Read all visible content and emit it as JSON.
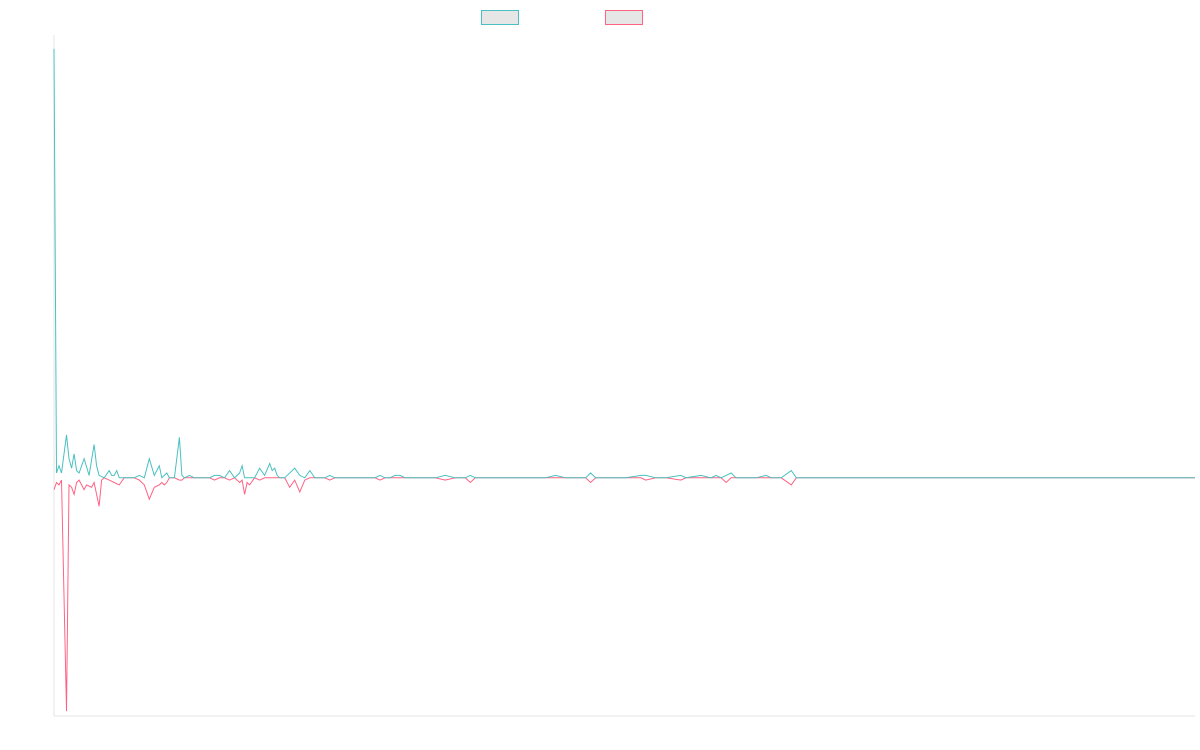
{
  "colors": {
    "series_a": "#4bc0c0",
    "series_b": "#ff6384",
    "axis": "#e5e5e5",
    "legend_fill": "#e6e6e6"
  },
  "chart_data": {
    "type": "line",
    "title": "",
    "xlabel": "",
    "ylabel": "",
    "grid": false,
    "legend_position": "top",
    "ylim": [
      -100,
      185
    ],
    "xlim": [
      0,
      455
    ],
    "x_ticks_visible": false,
    "y_ticks_visible": false,
    "series": [
      {
        "legend_label": "",
        "color_key": "series_a",
        "points": [
          [
            0,
            180
          ],
          [
            1,
            2
          ],
          [
            2,
            5
          ],
          [
            3,
            2
          ],
          [
            5,
            18
          ],
          [
            6,
            8
          ],
          [
            7,
            4
          ],
          [
            8,
            10
          ],
          [
            9,
            3
          ],
          [
            10,
            2
          ],
          [
            12,
            8
          ],
          [
            14,
            1
          ],
          [
            16,
            14
          ],
          [
            17,
            5
          ],
          [
            18,
            1
          ],
          [
            20,
            0
          ],
          [
            22,
            3
          ],
          [
            23,
            1
          ],
          [
            24,
            1
          ],
          [
            25,
            3
          ],
          [
            26,
            0
          ],
          [
            28,
            0
          ],
          [
            30,
            0
          ],
          [
            32,
            0
          ],
          [
            34,
            1
          ],
          [
            36,
            0
          ],
          [
            38,
            8
          ],
          [
            40,
            1
          ],
          [
            42,
            5
          ],
          [
            43,
            0
          ],
          [
            44,
            1
          ],
          [
            45,
            2
          ],
          [
            46,
            0
          ],
          [
            48,
            0
          ],
          [
            50,
            17
          ],
          [
            51,
            1
          ],
          [
            52,
            0
          ],
          [
            54,
            1
          ],
          [
            56,
            0
          ],
          [
            58,
            0
          ],
          [
            60,
            0
          ],
          [
            62,
            0
          ],
          [
            64,
            1
          ],
          [
            66,
            1
          ],
          [
            68,
            0
          ],
          [
            70,
            3
          ],
          [
            72,
            0
          ],
          [
            74,
            2
          ],
          [
            75,
            5
          ],
          [
            76,
            0
          ],
          [
            78,
            0
          ],
          [
            80,
            0
          ],
          [
            82,
            4
          ],
          [
            84,
            1
          ],
          [
            86,
            6
          ],
          [
            87,
            3
          ],
          [
            88,
            4
          ],
          [
            89,
            1
          ],
          [
            90,
            0
          ],
          [
            92,
            0
          ],
          [
            96,
            4
          ],
          [
            98,
            1
          ],
          [
            100,
            0
          ],
          [
            102,
            3
          ],
          [
            104,
            0
          ],
          [
            106,
            0
          ],
          [
            108,
            0
          ],
          [
            110,
            1
          ],
          [
            112,
            0
          ],
          [
            114,
            0
          ],
          [
            116,
            0
          ],
          [
            118,
            0
          ],
          [
            120,
            0
          ],
          [
            122,
            0
          ],
          [
            124,
            0
          ],
          [
            126,
            0
          ],
          [
            128,
            0
          ],
          [
            130,
            1
          ],
          [
            132,
            0
          ],
          [
            134,
            0
          ],
          [
            136,
            1
          ],
          [
            138,
            1
          ],
          [
            140,
            0
          ],
          [
            142,
            0
          ],
          [
            144,
            0
          ],
          [
            146,
            0
          ],
          [
            148,
            0
          ],
          [
            150,
            0
          ],
          [
            152,
            0
          ],
          [
            156,
            1
          ],
          [
            160,
            0
          ],
          [
            164,
            0
          ],
          [
            166,
            1
          ],
          [
            168,
            0
          ],
          [
            172,
            0
          ],
          [
            176,
            0
          ],
          [
            178,
            0
          ],
          [
            180,
            0
          ],
          [
            182,
            0
          ],
          [
            186,
            0
          ],
          [
            190,
            0
          ],
          [
            194,
            0
          ],
          [
            196,
            0
          ],
          [
            200,
            1
          ],
          [
            204,
            0
          ],
          [
            208,
            0
          ],
          [
            212,
            0
          ],
          [
            214,
            2
          ],
          [
            216,
            0
          ],
          [
            222,
            0
          ],
          [
            228,
            0
          ],
          [
            234,
            1
          ],
          [
            236,
            1
          ],
          [
            240,
            0
          ],
          [
            244,
            0
          ],
          [
            250,
            1
          ],
          [
            252,
            0
          ],
          [
            258,
            1
          ],
          [
            262,
            0
          ],
          [
            264,
            1
          ],
          [
            266,
            0
          ],
          [
            268,
            1
          ],
          [
            270,
            2
          ],
          [
            272,
            0
          ],
          [
            274,
            0
          ],
          [
            276,
            0
          ],
          [
            280,
            0
          ],
          [
            284,
            1
          ],
          [
            286,
            0
          ],
          [
            290,
            0
          ],
          [
            294,
            3
          ],
          [
            296,
            0
          ],
          [
            298,
            0
          ],
          [
            300,
            0
          ],
          [
            304,
            0
          ],
          [
            310,
            0
          ],
          [
            320,
            0
          ],
          [
            330,
            0
          ],
          [
            340,
            0
          ],
          [
            350,
            0
          ],
          [
            360,
            0
          ],
          [
            370,
            0
          ],
          [
            380,
            0
          ],
          [
            390,
            0
          ],
          [
            400,
            0
          ],
          [
            410,
            0
          ],
          [
            420,
            0
          ],
          [
            430,
            0
          ],
          [
            440,
            0
          ],
          [
            455,
            0
          ]
        ]
      },
      {
        "legend_label": "",
        "color_key": "series_b",
        "points": [
          [
            0,
            -5
          ],
          [
            1,
            -2
          ],
          [
            2,
            -3
          ],
          [
            3,
            -1
          ],
          [
            5,
            -98
          ],
          [
            6,
            -3
          ],
          [
            7,
            -4
          ],
          [
            8,
            -7
          ],
          [
            9,
            -2
          ],
          [
            10,
            -1
          ],
          [
            12,
            -5
          ],
          [
            13,
            -3
          ],
          [
            15,
            -4
          ],
          [
            16,
            -2
          ],
          [
            18,
            -12
          ],
          [
            19,
            -1
          ],
          [
            20,
            0
          ],
          [
            22,
            -1
          ],
          [
            24,
            -2
          ],
          [
            26,
            -3
          ],
          [
            28,
            0
          ],
          [
            30,
            0
          ],
          [
            32,
            0
          ],
          [
            34,
            -1
          ],
          [
            36,
            -3
          ],
          [
            38,
            -9
          ],
          [
            40,
            -4
          ],
          [
            42,
            -3
          ],
          [
            43,
            -2
          ],
          [
            44,
            -3
          ],
          [
            45,
            -2
          ],
          [
            46,
            0
          ],
          [
            48,
            0
          ],
          [
            50,
            -1
          ],
          [
            51,
            -1
          ],
          [
            52,
            0
          ],
          [
            54,
            0
          ],
          [
            56,
            0
          ],
          [
            58,
            0
          ],
          [
            60,
            0
          ],
          [
            62,
            0
          ],
          [
            64,
            -1
          ],
          [
            66,
            0
          ],
          [
            68,
            0
          ],
          [
            70,
            -1
          ],
          [
            72,
            0
          ],
          [
            74,
            -2
          ],
          [
            75,
            -1
          ],
          [
            76,
            -7
          ],
          [
            77,
            -2
          ],
          [
            78,
            -3
          ],
          [
            80,
            0
          ],
          [
            82,
            -1
          ],
          [
            84,
            0
          ],
          [
            86,
            0
          ],
          [
            88,
            0
          ],
          [
            90,
            0
          ],
          [
            92,
            0
          ],
          [
            94,
            -4
          ],
          [
            96,
            -1
          ],
          [
            98,
            -6
          ],
          [
            100,
            -1
          ],
          [
            102,
            0
          ],
          [
            104,
            0
          ],
          [
            106,
            0
          ],
          [
            108,
            0
          ],
          [
            110,
            -1
          ],
          [
            112,
            0
          ],
          [
            114,
            0
          ],
          [
            116,
            0
          ],
          [
            118,
            0
          ],
          [
            120,
            0
          ],
          [
            122,
            0
          ],
          [
            124,
            0
          ],
          [
            126,
            0
          ],
          [
            128,
            0
          ],
          [
            130,
            -1
          ],
          [
            132,
            0
          ],
          [
            134,
            0
          ],
          [
            136,
            0
          ],
          [
            138,
            0
          ],
          [
            140,
            0
          ],
          [
            142,
            0
          ],
          [
            144,
            0
          ],
          [
            146,
            0
          ],
          [
            148,
            0
          ],
          [
            150,
            0
          ],
          [
            152,
            0
          ],
          [
            156,
            -1
          ],
          [
            160,
            0
          ],
          [
            164,
            0
          ],
          [
            166,
            -2
          ],
          [
            168,
            0
          ],
          [
            172,
            0
          ],
          [
            176,
            0
          ],
          [
            178,
            0
          ],
          [
            180,
            0
          ],
          [
            182,
            0
          ],
          [
            186,
            0
          ],
          [
            190,
            0
          ],
          [
            194,
            0
          ],
          [
            196,
            0
          ],
          [
            200,
            0
          ],
          [
            204,
            0
          ],
          [
            208,
            0
          ],
          [
            212,
            0
          ],
          [
            214,
            -2
          ],
          [
            216,
            0
          ],
          [
            222,
            0
          ],
          [
            228,
            0
          ],
          [
            234,
            0
          ],
          [
            236,
            -1
          ],
          [
            240,
            0
          ],
          [
            244,
            0
          ],
          [
            250,
            -1
          ],
          [
            252,
            0
          ],
          [
            258,
            0
          ],
          [
            262,
            0
          ],
          [
            264,
            0
          ],
          [
            266,
            0
          ],
          [
            268,
            -2
          ],
          [
            270,
            0
          ],
          [
            272,
            0
          ],
          [
            274,
            0
          ],
          [
            276,
            0
          ],
          [
            280,
            0
          ],
          [
            284,
            0
          ],
          [
            286,
            0
          ],
          [
            290,
            0
          ],
          [
            294,
            -3
          ],
          [
            296,
            0
          ],
          [
            298,
            0
          ],
          [
            300,
            0
          ],
          [
            304,
            0
          ],
          [
            310,
            0
          ],
          [
            320,
            0
          ],
          [
            330,
            0
          ],
          [
            340,
            0
          ],
          [
            350,
            0
          ],
          [
            360,
            0
          ],
          [
            370,
            0
          ],
          [
            380,
            0
          ],
          [
            390,
            0
          ],
          [
            400,
            0
          ],
          [
            410,
            0
          ],
          [
            420,
            0
          ],
          [
            430,
            0
          ],
          [
            440,
            0
          ],
          [
            455,
            0
          ]
        ]
      }
    ]
  }
}
